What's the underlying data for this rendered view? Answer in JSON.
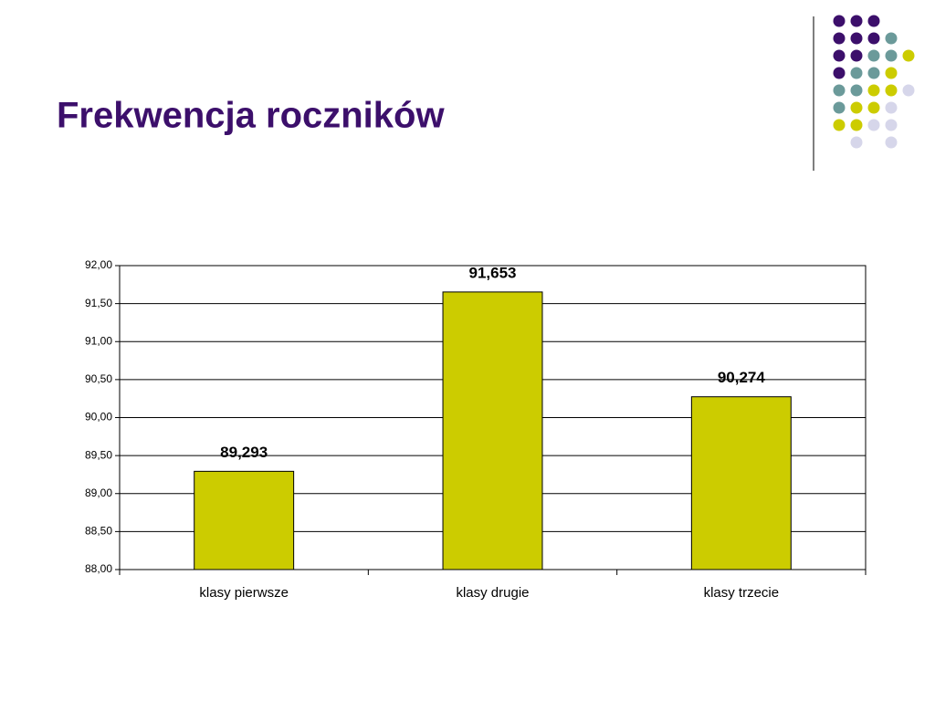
{
  "chart_data": {
    "type": "bar",
    "title": "Frekwencja roczników",
    "categories": [
      "klasy pierwsze",
      "klasy drugie",
      "klasy trzecie"
    ],
    "values": [
      89.293,
      91.653,
      90.274
    ],
    "value_labels": [
      "89,293",
      "91,653",
      "90,274"
    ],
    "color": "#cccc00",
    "ylim": [
      88,
      92
    ],
    "yticks": [
      {
        "value": 88,
        "label": "88,00"
      },
      {
        "value": 88.5,
        "label": "88,50"
      },
      {
        "value": 89,
        "label": "89,00"
      },
      {
        "value": 89.5,
        "label": "89,50"
      },
      {
        "value": 90,
        "label": "90,00"
      },
      {
        "value": 90.5,
        "label": "90,50"
      },
      {
        "value": 91,
        "label": "91,00"
      },
      {
        "value": 91.5,
        "label": "91,50"
      },
      {
        "value": 92,
        "label": "92,00"
      }
    ],
    "grid": true
  }
}
